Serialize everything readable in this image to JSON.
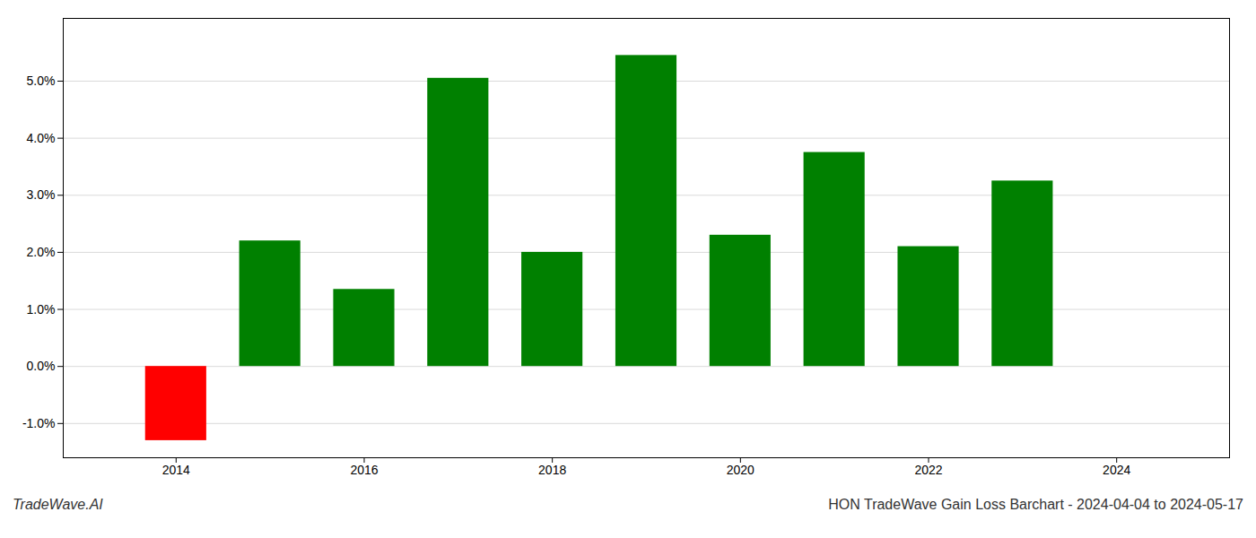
{
  "chart_data": {
    "type": "bar",
    "title": "HON TradeWave Gain Loss Barchart - 2024-04-04 to 2024-05-17",
    "annotations": [
      "TradeWave.AI"
    ],
    "x": [
      2014,
      2015,
      2016,
      2017,
      2018,
      2019,
      2020,
      2021,
      2022,
      2023
    ],
    "values": [
      -1.3,
      2.2,
      1.35,
      5.05,
      2.0,
      5.45,
      2.3,
      3.75,
      2.1,
      3.25
    ],
    "colors": [
      "#ff0000",
      "#008000",
      "#008000",
      "#008000",
      "#008000",
      "#008000",
      "#008000",
      "#008000",
      "#008000",
      "#008000"
    ],
    "xlim": [
      2012.8,
      2025.2
    ],
    "xticks": [
      2014,
      2016,
      2018,
      2020,
      2022,
      2024
    ],
    "ylim": [
      -1.6,
      6.1
    ],
    "yticks": [
      {
        "value": -1.0,
        "label": "-1.0%"
      },
      {
        "value": 0.0,
        "label": "0.0%"
      },
      {
        "value": 1.0,
        "label": "1.0%"
      },
      {
        "value": 2.0,
        "label": "2.0%"
      },
      {
        "value": 3.0,
        "label": "3.0%"
      },
      {
        "value": 4.0,
        "label": "4.0%"
      },
      {
        "value": 5.0,
        "label": "5.0%"
      }
    ],
    "grid": true
  }
}
